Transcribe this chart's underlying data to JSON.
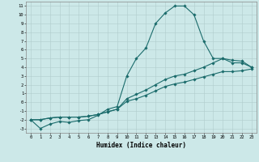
{
  "title": "",
  "xlabel": "Humidex (Indice chaleur)",
  "bg_color": "#cce8e8",
  "line_color": "#1a6b6b",
  "grid_color": "#b0cccc",
  "xlim": [
    -0.5,
    23.5
  ],
  "ylim": [
    -3.5,
    11.5
  ],
  "xticks": [
    0,
    1,
    2,
    3,
    4,
    5,
    6,
    7,
    8,
    9,
    10,
    11,
    12,
    13,
    14,
    15,
    16,
    17,
    18,
    19,
    20,
    21,
    22,
    23
  ],
  "yticks": [
    -3,
    -2,
    -1,
    0,
    1,
    2,
    3,
    4,
    5,
    6,
    7,
    8,
    9,
    10,
    11
  ],
  "line1_x": [
    0,
    1,
    2,
    3,
    4,
    5,
    6,
    7,
    8,
    9,
    10,
    11,
    12,
    13,
    14,
    15,
    16,
    17,
    18,
    19,
    20,
    21,
    22,
    23
  ],
  "line1_y": [
    -2,
    -3,
    -2.5,
    -2.2,
    -2.3,
    -2.1,
    -2.0,
    -1.5,
    -0.8,
    -0.5,
    3.0,
    5.0,
    6.2,
    9.0,
    10.2,
    11.0,
    11.0,
    10.0,
    7.0,
    5.0,
    5.0,
    4.5,
    4.5,
    4.0
  ],
  "line2_x": [
    0,
    1,
    2,
    3,
    4,
    5,
    6,
    7,
    8,
    9,
    10,
    11,
    12,
    13,
    14,
    15,
    16,
    17,
    18,
    19,
    20,
    21,
    22,
    23
  ],
  "line2_y": [
    -2,
    -2,
    -1.8,
    -1.7,
    -1.7,
    -1.7,
    -1.6,
    -1.4,
    -1.1,
    -0.8,
    0.4,
    0.9,
    1.4,
    2.0,
    2.6,
    3.0,
    3.2,
    3.6,
    4.0,
    4.5,
    5.0,
    4.8,
    4.7,
    4.0
  ],
  "line3_x": [
    0,
    1,
    2,
    3,
    4,
    5,
    6,
    7,
    8,
    9,
    10,
    11,
    12,
    13,
    14,
    15,
    16,
    17,
    18,
    19,
    20,
    21,
    22,
    23
  ],
  "line3_y": [
    -2,
    -2,
    -1.8,
    -1.7,
    -1.7,
    -1.7,
    -1.6,
    -1.4,
    -1.1,
    -0.8,
    0.1,
    0.4,
    0.8,
    1.3,
    1.8,
    2.1,
    2.3,
    2.6,
    2.9,
    3.2,
    3.5,
    3.5,
    3.6,
    3.8
  ]
}
